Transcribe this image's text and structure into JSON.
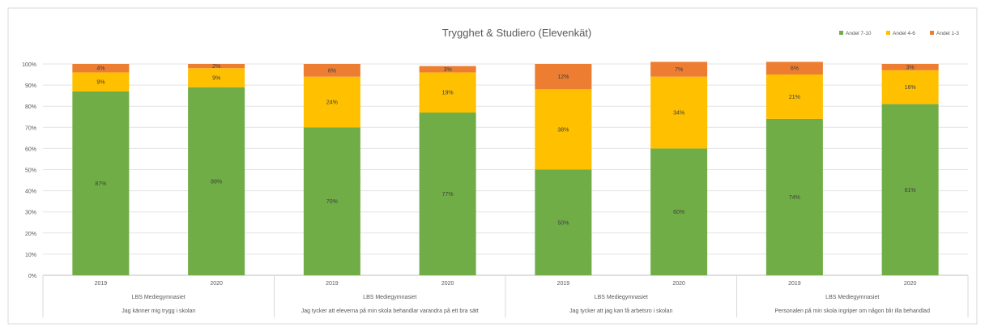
{
  "chart_data": {
    "type": "bar",
    "stacked": "percent",
    "title": "Trygghet & Studiero (Elevenkät)",
    "legend_position": "top-right",
    "grid": true,
    "ylim": [
      0,
      100
    ],
    "y_ticks": [
      "0%",
      "10%",
      "20%",
      "30%",
      "40%",
      "50%",
      "60%",
      "70%",
      "80%",
      "90%",
      "100%"
    ],
    "school": "LBS Mediegymnasiet",
    "groups": [
      {
        "question": "Jag känner mig trygg i skolan",
        "categories": [
          "2019",
          "2020"
        ]
      },
      {
        "question": "Jag tycker att eleverna på min skola behandlar varandra på ett bra sätt",
        "categories": [
          "2019",
          "2020"
        ]
      },
      {
        "question": "Jag tycker att jag kan få arbetsro i skolan",
        "categories": [
          "2019",
          "2020"
        ]
      },
      {
        "question": "Personalen på min skola ingriper om någon blir illa behandlad",
        "categories": [
          "2019",
          "2020"
        ]
      }
    ],
    "series": [
      {
        "name": "Andel 7-10",
        "color": "#70ad47",
        "values": [
          87,
          89,
          70,
          77,
          50,
          60,
          74,
          81
        ],
        "labels": [
          "87%",
          "89%",
          "70%",
          "77%",
          "50%",
          "60%",
          "74%",
          "81%"
        ]
      },
      {
        "name": "Andel 4-6",
        "color": "#ffc000",
        "values": [
          9,
          9,
          24,
          19,
          38,
          34,
          21,
          16
        ],
        "labels": [
          "9%",
          "9%",
          "24%",
          "19%",
          "38%",
          "34%",
          "21%",
          "16%"
        ]
      },
      {
        "name": "Andel 1-3",
        "color": "#ed7d31",
        "values": [
          4,
          2,
          6,
          3,
          12,
          7,
          6,
          3
        ],
        "labels": [
          "4%",
          "2%",
          "6%",
          "3%",
          "12%",
          "7%",
          "6%",
          "3%"
        ]
      }
    ]
  }
}
